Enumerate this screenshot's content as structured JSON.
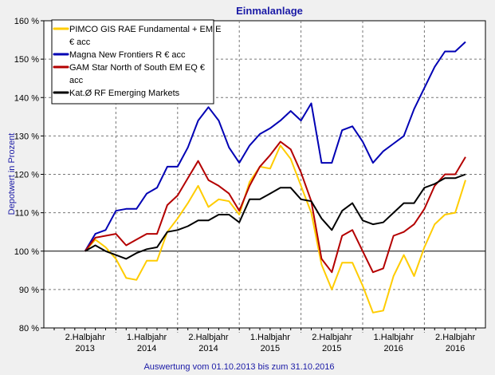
{
  "chart_data": {
    "type": "line",
    "title": "Einmalanlage",
    "ylabel": "Depotwert in Prozent",
    "xlabel": "Auswertung vom 01.10.2013 bis zum 31.10.2016",
    "ylim": [
      80,
      160
    ],
    "yticks": [
      "80 %",
      "90 %",
      "100 %",
      "110 %",
      "120 %",
      "130 %",
      "140 %",
      "150 %",
      "160 %"
    ],
    "ytick_values": [
      80,
      90,
      100,
      110,
      120,
      130,
      140,
      150,
      160
    ],
    "baseline": 100,
    "grid": true,
    "legend_position": "top-left",
    "x_start": "2013-10",
    "x_months": 37,
    "xticks": [
      {
        "l1": "2.Halbjahr",
        "l2": "2013"
      },
      {
        "l1": "1.Halbjahr",
        "l2": "2014"
      },
      {
        "l1": "2.Halbjahr",
        "l2": "2014"
      },
      {
        "l1": "1.Halbjahr",
        "l2": "2015"
      },
      {
        "l1": "2.Halbjahr",
        "l2": "2015"
      },
      {
        "l1": "1.Halbjahr",
        "l2": "2016"
      },
      {
        "l1": "2.Halbjahr",
        "l2": "2016"
      }
    ],
    "series": [
      {
        "name": "PIMCO GIS RAE Fundamental + EM E\n€ acc",
        "legend_lines": [
          "PIMCO GIS RAE Fundamental + EM E",
          "€ acc"
        ],
        "color": "#ffcc00",
        "values": [
          100,
          103,
          101,
          98,
          93,
          92.5,
          97.5,
          97.5,
          105,
          108.5,
          112.5,
          117,
          111.5,
          113.5,
          113,
          109.5,
          118,
          122,
          121.5,
          127.5,
          124,
          117,
          110,
          96.5,
          90,
          97,
          97,
          91,
          84,
          84.5,
          93.5,
          99,
          93.5,
          101,
          107,
          109.5,
          110,
          118.5
        ]
      },
      {
        "name": "Magna New Frontiers R € acc",
        "legend_lines": [
          "Magna New Frontiers R € acc"
        ],
        "color": "#0000b4",
        "values": [
          100,
          104.5,
          105.5,
          110.5,
          111,
          111,
          115,
          116.5,
          122,
          122,
          127,
          134,
          137.5,
          134,
          127,
          123,
          127.5,
          130.5,
          132,
          134,
          136.5,
          134,
          138.5,
          123,
          123,
          131.5,
          132.5,
          128.5,
          123,
          126,
          128,
          130,
          137,
          142.5,
          148,
          152,
          152,
          154.5
        ]
      },
      {
        "name": "GAM Star North of South EM EQ €\nacc",
        "legend_lines": [
          "GAM Star North of South EM EQ €",
          "acc"
        ],
        "color": "#b40000",
        "values": [
          100,
          103.5,
          104,
          104.5,
          101.5,
          103,
          104.5,
          104.5,
          112,
          114.5,
          119,
          123.5,
          118.5,
          117,
          115,
          110.5,
          117,
          122,
          125,
          128.5,
          126.5,
          120.5,
          113,
          98,
          94.5,
          104,
          105.5,
          100,
          94.5,
          95.5,
          104,
          105,
          107,
          111,
          117,
          120,
          120,
          124.5
        ]
      },
      {
        "name": "Kat.Ø RF Emerging Markets",
        "legend_lines": [
          "Kat.Ø RF Emerging Markets"
        ],
        "color": "#000000",
        "values": [
          100,
          101.5,
          100,
          99,
          98,
          99.5,
          100.5,
          101,
          105,
          105.5,
          106.5,
          108,
          108,
          109.5,
          109.5,
          107.5,
          113.5,
          113.5,
          115,
          116.5,
          116.5,
          113.5,
          113,
          108.5,
          105.5,
          110.5,
          112.5,
          108,
          107,
          107.5,
          110,
          112.5,
          112.5,
          116.5,
          117.5,
          119,
          119,
          120
        ]
      }
    ]
  }
}
